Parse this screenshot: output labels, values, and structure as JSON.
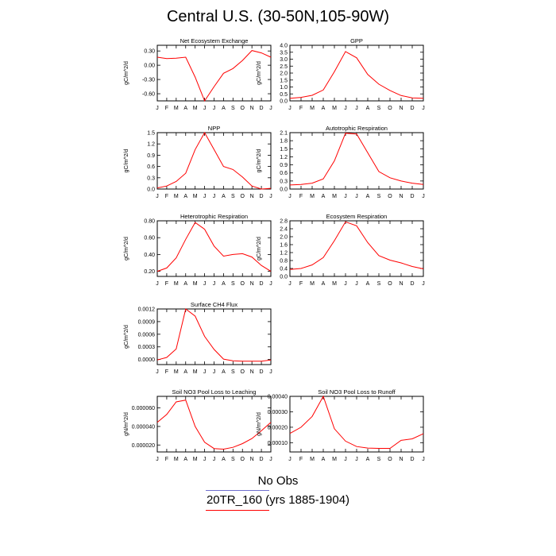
{
  "page": {
    "title": "Central U.S. (30-50N,105-90W)",
    "legend": [
      {
        "label": "No Obs",
        "color": "#6f6fcf"
      },
      {
        "label": "20TR_160 (yrs 1885-1904)",
        "color": "#ff0000"
      }
    ]
  },
  "chart_data": [
    {
      "type": "line",
      "title": "Net Ecosystem Exchange",
      "ylabel": "gC/m^2/d",
      "xlabel": "",
      "categories": [
        "J",
        "F",
        "M",
        "A",
        "M",
        "J",
        "J",
        "A",
        "S",
        "O",
        "N",
        "D",
        "J"
      ],
      "yticks": [
        "0.30",
        "0.00",
        "-0.30",
        "-0.60"
      ],
      "ytick_values": [
        0.3,
        0.0,
        -0.3,
        -0.6
      ],
      "ylim": [
        -0.75,
        0.42
      ],
      "series": [
        {
          "color": "#ff0000",
          "values": [
            0.17,
            0.14,
            0.15,
            0.17,
            -0.25,
            -0.75,
            -0.45,
            -0.17,
            -0.07,
            0.1,
            0.31,
            0.26,
            0.17
          ]
        }
      ]
    },
    {
      "type": "line",
      "title": "GPP",
      "ylabel": "gC/m^2/d",
      "xlabel": "",
      "categories": [
        "J",
        "F",
        "M",
        "A",
        "M",
        "J",
        "J",
        "A",
        "S",
        "O",
        "N",
        "D",
        "J"
      ],
      "yticks": [
        "0.0",
        "0.5",
        "1.0",
        "1.5",
        "2.0",
        "2.5",
        "3.0",
        "3.5",
        "4.0"
      ],
      "ytick_values": [
        0,
        0.5,
        1.0,
        1.5,
        2.0,
        2.5,
        3.0,
        3.5,
        4.0
      ],
      "ylim": [
        0,
        4.0
      ],
      "series": [
        {
          "color": "#ff0000",
          "values": [
            0.18,
            0.25,
            0.4,
            0.78,
            2.1,
            3.55,
            3.1,
            1.9,
            1.2,
            0.75,
            0.38,
            0.22,
            0.18
          ]
        }
      ]
    },
    {
      "type": "line",
      "title": "NPP",
      "ylabel": "gC/m^2/d",
      "xlabel": "",
      "categories": [
        "J",
        "F",
        "M",
        "A",
        "M",
        "J",
        "J",
        "A",
        "S",
        "O",
        "N",
        "D",
        "J"
      ],
      "yticks": [
        "0.0",
        "0.3",
        "0.6",
        "0.9",
        "1.2",
        "1.5"
      ],
      "ytick_values": [
        0,
        0.3,
        0.6,
        0.9,
        1.2,
        1.5
      ],
      "ylim": [
        0,
        1.5
      ],
      "series": [
        {
          "color": "#ff0000",
          "values": [
            0.03,
            0.08,
            0.2,
            0.42,
            1.05,
            1.5,
            1.05,
            0.6,
            0.52,
            0.32,
            0.08,
            0.0,
            0.02
          ]
        }
      ]
    },
    {
      "type": "line",
      "title": "Autotrophic Respiration",
      "ylabel": "gC/m^2/d",
      "xlabel": "",
      "categories": [
        "J",
        "F",
        "M",
        "A",
        "M",
        "J",
        "J",
        "A",
        "S",
        "O",
        "N",
        "D",
        "J"
      ],
      "yticks": [
        "0.0",
        "0.3",
        "0.6",
        "0.9",
        "1.2",
        "1.5",
        "1.8",
        "2.1"
      ],
      "ytick_values": [
        0,
        0.3,
        0.6,
        0.9,
        1.2,
        1.5,
        1.8,
        2.1
      ],
      "ylim": [
        0,
        2.1
      ],
      "series": [
        {
          "color": "#ff0000",
          "values": [
            0.15,
            0.17,
            0.22,
            0.38,
            1.05,
            2.08,
            2.05,
            1.35,
            0.65,
            0.42,
            0.3,
            0.22,
            0.17
          ]
        }
      ]
    },
    {
      "type": "line",
      "title": "Heterotrophic Respiration",
      "ylabel": "gC/m^2/d",
      "xlabel": "",
      "categories": [
        "J",
        "F",
        "M",
        "A",
        "M",
        "J",
        "J",
        "A",
        "S",
        "O",
        "N",
        "D",
        "J"
      ],
      "yticks": [
        "0.20",
        "0.40",
        "0.60",
        "0.80"
      ],
      "ytick_values": [
        0.2,
        0.4,
        0.6,
        0.8
      ],
      "ylim": [
        0.14,
        0.8
      ],
      "series": [
        {
          "color": "#ff0000",
          "values": [
            0.2,
            0.24,
            0.36,
            0.58,
            0.78,
            0.7,
            0.5,
            0.38,
            0.4,
            0.41,
            0.37,
            0.27,
            0.2
          ]
        }
      ]
    },
    {
      "type": "line",
      "title": "Ecosystem Respiration",
      "ylabel": "gC/m^2/d",
      "xlabel": "",
      "categories": [
        "J",
        "F",
        "M",
        "A",
        "M",
        "J",
        "J",
        "A",
        "S",
        "O",
        "N",
        "D",
        "J"
      ],
      "yticks": [
        "0.0",
        "0.4",
        "0.8",
        "1.2",
        "1.6",
        "2.0",
        "2.4",
        "2.8"
      ],
      "ytick_values": [
        0,
        0.4,
        0.8,
        1.2,
        1.6,
        2.0,
        2.4,
        2.8
      ],
      "ylim": [
        0,
        2.8
      ],
      "series": [
        {
          "color": "#ff0000",
          "values": [
            0.35,
            0.4,
            0.58,
            0.95,
            1.8,
            2.75,
            2.55,
            1.7,
            1.05,
            0.82,
            0.68,
            0.5,
            0.38
          ]
        }
      ]
    },
    {
      "type": "line",
      "title": "Surface CH4 Flux",
      "ylabel": "gC/m^2/d",
      "xlabel": "",
      "categories": [
        "J",
        "F",
        "M",
        "A",
        "M",
        "J",
        "J",
        "A",
        "S",
        "O",
        "N",
        "D",
        "J"
      ],
      "yticks": [
        "0.0000",
        "0.0003",
        "0.0006",
        "0.0009",
        "0.0012"
      ],
      "ytick_values": [
        0,
        0.0003,
        0.0006,
        0.0009,
        0.0012
      ],
      "ylim": [
        -0.00012,
        0.0012
      ],
      "series": [
        {
          "color": "#ff0000",
          "values": [
            -1e-05,
            5e-05,
            0.00025,
            0.0012,
            0.00103,
            0.00055,
            0.00024,
            1e-05,
            -3e-05,
            -4e-05,
            -4e-05,
            -4e-05,
            -1e-05
          ]
        }
      ]
    },
    {
      "type": "line",
      "title": "Soil NO3 Pool Loss to Leaching",
      "ylabel": "gN/m^2/d",
      "xlabel": "",
      "categories": [
        "J",
        "F",
        "M",
        "A",
        "M",
        "J",
        "J",
        "A",
        "S",
        "O",
        "N",
        "D",
        "J"
      ],
      "yticks": [
        "0.000020",
        "0.000040",
        "0.000060"
      ],
      "ytick_values": [
        2e-05,
        4e-05,
        6e-05
      ],
      "ylim": [
        1.25e-05,
        7.25e-05
      ],
      "series": [
        {
          "color": "#ff0000",
          "values": [
            4.45e-05,
            5.3e-05,
            6.65e-05,
            6.85e-05,
            4e-05,
            2.3e-05,
            1.62e-05,
            1.55e-05,
            1.75e-05,
            2.15e-05,
            2.7e-05,
            3.55e-05,
            4.45e-05
          ]
        }
      ]
    },
    {
      "type": "line",
      "title": "Soil NO3 Pool Loss to Runoff",
      "ylabel": "gN/m^2/d",
      "xlabel": "",
      "categories": [
        "J",
        "F",
        "M",
        "A",
        "M",
        "J",
        "J",
        "A",
        "S",
        "O",
        "N",
        "D",
        "J"
      ],
      "yticks": [
        "0.00010",
        "0.00020",
        "0.00030",
        "0.00040"
      ],
      "ytick_values": [
        0.0001,
        0.0002,
        0.0003,
        0.0004
      ],
      "ylim": [
        4e-05,
        0.0004
      ],
      "series": [
        {
          "color": "#ff0000",
          "values": [
            0.00016,
            0.0002,
            0.00027,
            0.0004,
            0.00019,
            0.00011,
            7.5e-05,
            6.5e-05,
            6.3e-05,
            6.3e-05,
            0.000115,
            0.000125,
            0.000158
          ]
        }
      ]
    }
  ]
}
